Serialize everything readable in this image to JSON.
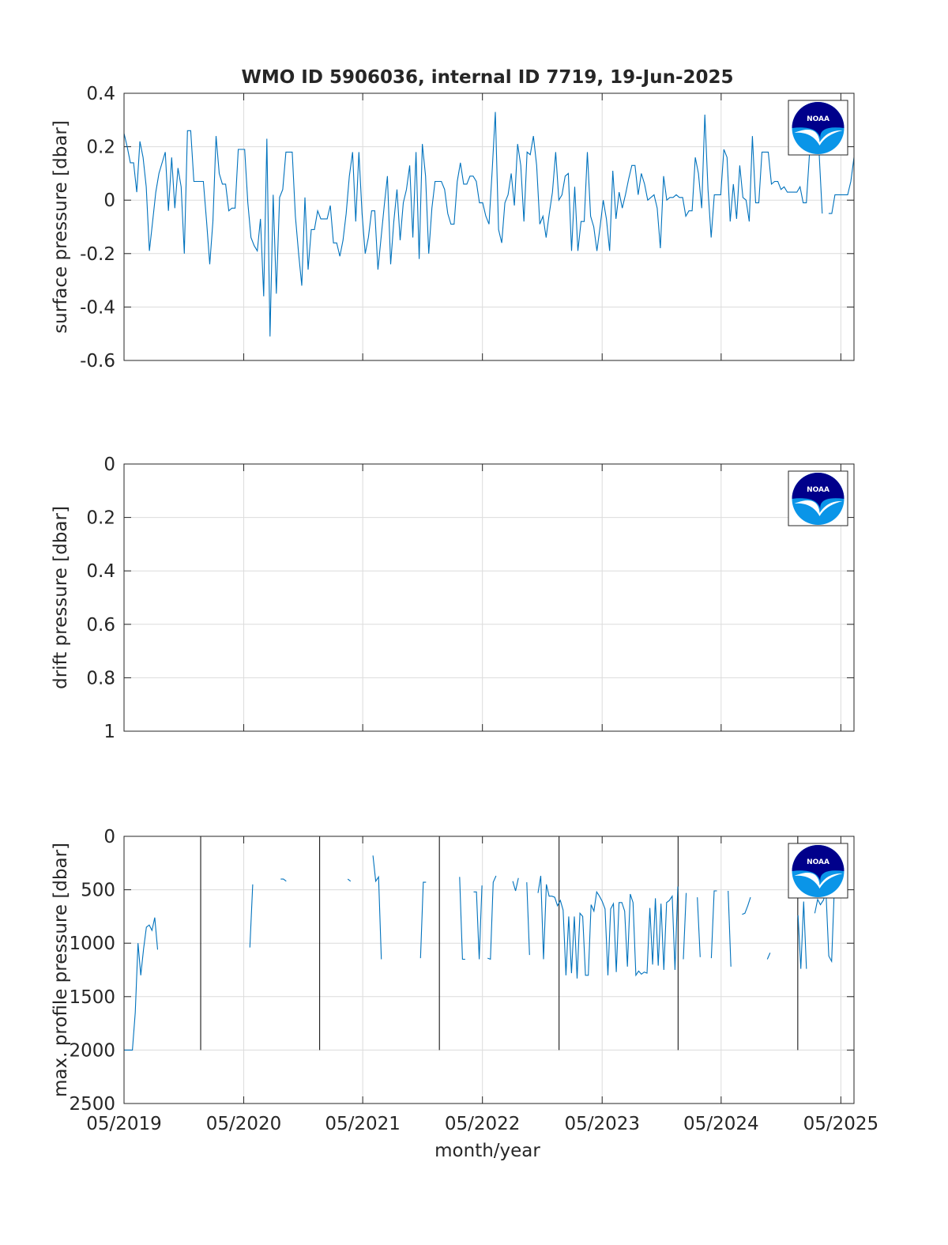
{
  "figure_title": "WMO ID 5906036, internal ID 7719, 19-Jun-2025",
  "logo_text": "NOAA",
  "colors": {
    "series": "#0072BD",
    "grid": "#dcdcdc",
    "axis": "#262626",
    "vline": "#000000",
    "logo_dark": "#00008b",
    "logo_light": "#0a95e8"
  },
  "x_axis": {
    "label": "month/year",
    "tick_labels": [
      "05/2019",
      "05/2020",
      "05/2021",
      "05/2022",
      "05/2023",
      "05/2024",
      "05/2025"
    ]
  },
  "chart_data": [
    {
      "type": "line",
      "ylabel": "surface pressure [dbar]",
      "ylim": [
        -0.6,
        0.4
      ],
      "yticks": [
        "0.4",
        "0.2",
        "0",
        "-0.2",
        "-0.4",
        "-0.6"
      ],
      "grid": true,
      "series": [
        {
          "values": [
            0.25,
            0.2,
            0.14,
            0.14,
            0.03,
            0.22,
            0.16,
            0.05,
            -0.19,
            -0.08,
            0.03,
            0.1,
            0.14,
            0.18,
            -0.04,
            0.16,
            -0.03,
            0.12,
            0.05,
            -0.2,
            0.26,
            0.26,
            0.07,
            0.07,
            0.07,
            0.07,
            -0.08,
            -0.24,
            -0.08,
            0.24,
            0.1,
            0.06,
            0.06,
            -0.04,
            -0.03,
            -0.03,
            0.19,
            0.19,
            0.19,
            -0.01,
            -0.14,
            -0.17,
            -0.19,
            -0.07,
            -0.36,
            0.23,
            -0.51,
            0.02,
            -0.35,
            0.01,
            0.04,
            0.18,
            0.18,
            0.18,
            -0.06,
            -0.2,
            -0.32,
            0.01,
            -0.26,
            -0.11,
            -0.11,
            -0.04,
            -0.07,
            -0.07,
            -0.07,
            -0.02,
            -0.16,
            -0.16,
            -0.21,
            -0.15,
            -0.05,
            0.09,
            0.18,
            -0.08,
            0.18,
            -0.05,
            -0.2,
            -0.14,
            -0.04,
            -0.04,
            -0.26,
            -0.14,
            -0.02,
            0.09,
            -0.24,
            -0.08,
            0.04,
            -0.15,
            -0.01,
            0.04,
            0.13,
            -0.14,
            0.18,
            -0.22,
            0.21,
            0.09,
            -0.2,
            -0.03,
            0.07,
            0.07,
            0.07,
            0.04,
            -0.05,
            -0.09,
            -0.09,
            0.07,
            0.14,
            0.06,
            0.06,
            0.09,
            0.09,
            0.07,
            -0.01,
            -0.01,
            -0.06,
            -0.09,
            0.11,
            0.33,
            -0.11,
            -0.16,
            -0.01,
            0.02,
            0.1,
            -0.02,
            0.21,
            0.13,
            -0.08,
            0.18,
            0.17,
            0.24,
            0.13,
            -0.09,
            -0.06,
            -0.14,
            -0.05,
            0.03,
            0.18,
            0.0,
            0.02,
            0.09,
            0.1,
            -0.19,
            0.05,
            -0.19,
            -0.08,
            -0.08,
            0.18,
            -0.06,
            -0.1,
            -0.19,
            -0.1,
            0.0,
            -0.07,
            -0.19,
            0.11,
            -0.07,
            0.03,
            -0.03,
            0.02,
            0.08,
            0.13,
            0.13,
            0.02,
            0.1,
            0.06,
            0.0,
            0.01,
            0.02,
            -0.03,
            -0.18,
            0.09,
            0.0,
            0.01,
            0.01,
            0.02,
            0.01,
            0.01,
            -0.06,
            -0.04,
            -0.04,
            0.16,
            0.1,
            -0.03,
            0.32,
            0.04,
            -0.14,
            0.02,
            0.02,
            0.02,
            0.19,
            0.16,
            -0.08,
            0.06,
            -0.07,
            0.13,
            0.01,
            0.0,
            -0.08,
            0.24,
            -0.01,
            -0.01,
            0.18,
            0.18,
            0.18,
            0.06,
            0.07,
            0.07,
            0.04,
            0.05,
            0.03,
            0.03,
            0.03,
            0.03,
            0.05,
            -0.01,
            -0.01,
            0.18,
            null,
            null,
            0.18,
            -0.05,
            null,
            -0.05,
            -0.05,
            0.02,
            0.02,
            0.02,
            0.02,
            0.02,
            0.07,
            0.16
          ]
        }
      ]
    },
    {
      "type": "line",
      "ylabel": "drift pressure [dbar]",
      "ylim": [
        0,
        1
      ],
      "reversed": true,
      "yticks": [
        "0",
        "0.2",
        "0.4",
        "0.6",
        "0.8",
        "1"
      ],
      "grid": true,
      "series": []
    },
    {
      "type": "line",
      "ylabel": "max. profile pressure [dbar]",
      "ylim": [
        0,
        2500
      ],
      "reversed": true,
      "yticks": [
        "0",
        "500",
        "1000",
        "1500",
        "2000",
        "2500"
      ],
      "grid": true,
      "vertical_markers": [
        0.105,
        0.268,
        0.432,
        0.596,
        0.759,
        0.923
      ],
      "series": [
        {
          "values": [
            2000,
            2000,
            2000,
            2000,
            1650,
            1000,
            1300,
            1050,
            850,
            830,
            880,
            760,
            1060,
            null,
            null,
            null,
            null,
            null,
            null,
            null,
            null,
            null,
            null,
            null,
            null,
            null,
            null,
            null,
            null,
            null,
            null,
            null,
            null,
            null,
            null,
            null,
            null,
            null,
            null,
            null,
            null,
            null,
            null,
            null,
            null,
            1040,
            450,
            null,
            null,
            null,
            null,
            null,
            null,
            null,
            null,
            null,
            400,
            400,
            420,
            null,
            null,
            null,
            null,
            null,
            null,
            null,
            null,
            null,
            null,
            null,
            null,
            null,
            null,
            null,
            null,
            null,
            null,
            null,
            null,
            null,
            400,
            420,
            null,
            null,
            null,
            null,
            null,
            null,
            null,
            180,
            420,
            380,
            1150,
            null,
            null,
            null,
            null,
            null,
            null,
            null,
            null,
            null,
            null,
            null,
            null,
            null,
            1140,
            430,
            430,
            null,
            null,
            null,
            null,
            null,
            null,
            null,
            null,
            null,
            null,
            null,
            380,
            1150,
            1150,
            null,
            null,
            520,
            520,
            1150,
            460,
            null,
            1140,
            1150,
            430,
            370,
            null,
            null,
            null,
            null,
            null,
            420,
            510,
            390,
            null,
            null,
            430,
            1110,
            null,
            null,
            530,
            370,
            1150,
            450,
            560,
            560,
            570,
            650,
            600,
            690,
            1300,
            750,
            1280,
            750,
            1330,
            720,
            750,
            1300,
            1300,
            640,
            700,
            520,
            560,
            610,
            680,
            1300,
            680,
            630,
            1270,
            620,
            620,
            700,
            1220,
            540,
            620,
            1300,
            1260,
            1290,
            1270,
            1280,
            670,
            1200,
            580,
            1210,
            630,
            1250,
            620,
            600,
            560,
            1250,
            470,
            null,
            1150,
            530,
            null,
            null,
            null,
            570,
            1130,
            null,
            null,
            null,
            1140,
            510,
            510,
            null,
            null,
            null,
            510,
            1220,
            null,
            null,
            null,
            730,
            720,
            650,
            570,
            null,
            null,
            null,
            null,
            null,
            1150,
            1090,
            null,
            null,
            450,
            null,
            null,
            null,
            null,
            null,
            null,
            740,
            1240,
            610,
            1240,
            null,
            null,
            720,
            590,
            640,
            600,
            530,
            1120,
            1170,
            470,
            null,
            null,
            null,
            null,
            null,
            null,
            null
          ]
        }
      ]
    }
  ]
}
